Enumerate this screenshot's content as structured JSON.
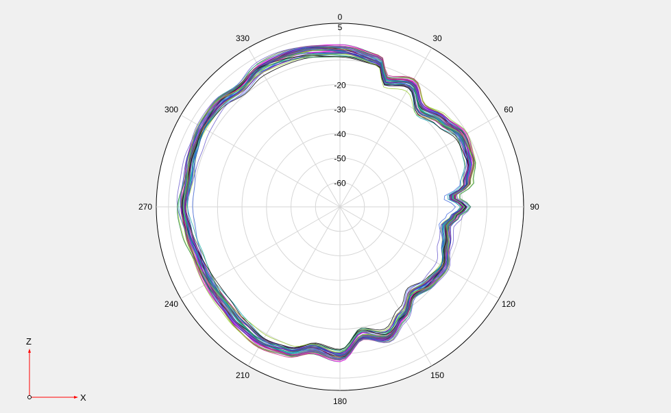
{
  "chart_data": {
    "type": "polar-line",
    "title": "",
    "angle_unit": "degrees",
    "angle_direction": "clockwise",
    "angle_zero": "top",
    "angle_tick_labels": [
      "0",
      "30",
      "60",
      "90",
      "120",
      "150",
      "180",
      "210",
      "240",
      "270",
      "300",
      "330"
    ],
    "radial_tick_labels": [
      "5",
      "-20",
      "-30",
      "-40",
      "-50",
      "-60"
    ],
    "radial_ticks": [
      5,
      -20,
      -30,
      -40,
      -50,
      -60
    ],
    "radial_range": [
      -70,
      5
    ],
    "radial_grid_step": 10,
    "angle_grid_step": 30,
    "grid": true,
    "legend": "none",
    "series_count": 40,
    "series_colors": [
      "#1f3fbf",
      "#8b1a8b",
      "#2e8b57",
      "#9acd32",
      "#00a0b0",
      "#ff00ff",
      "#000000",
      "#556b2f",
      "#4169e1",
      "#c71585",
      "#20b2aa",
      "#6a5acd"
    ],
    "base_pattern": {
      "angles": [
        0,
        15,
        20,
        30,
        40,
        50,
        60,
        70,
        80,
        85,
        90,
        95,
        100,
        110,
        120,
        130,
        140,
        150,
        160,
        170,
        180,
        190,
        200,
        210,
        220,
        230,
        240,
        250,
        260,
        270,
        280,
        290,
        300,
        310,
        320,
        330,
        345,
        360
      ],
      "values": [
        -6,
        -8,
        -15,
        -12,
        -18,
        -15,
        -12,
        -13,
        -17,
        -24,
        -19,
        -23,
        -26,
        -24,
        -21,
        -22,
        -24,
        -19,
        -14,
        -17,
        -9,
        -11,
        -7,
        -6,
        -7,
        -8,
        -8,
        -8,
        -7,
        -6,
        -7,
        -6,
        -5,
        -5,
        -7,
        -5,
        -5,
        -6
      ]
    }
  },
  "axis_indicator": {
    "z_label": "Z",
    "x_label": "X",
    "color": "#ff0000"
  }
}
